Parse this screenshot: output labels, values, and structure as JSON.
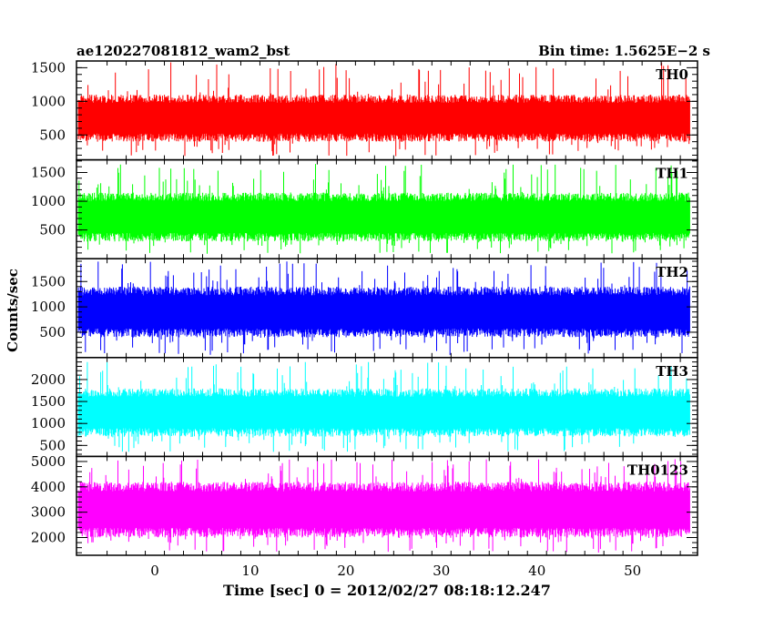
{
  "chart_data": {
    "type": "line",
    "title_left": "ae120227081812_wam2_bst",
    "title_right": "Bin time: 1.5625E−2 s",
    "xlabel": "Time [sec] 0 = 2012/02/27 08:18:12.247",
    "ylabel": "Counts/sec",
    "xlim": [
      -8.2,
      56.8
    ],
    "data_xrange": [
      -8,
      56
    ],
    "xticks": [
      0,
      10,
      20,
      30,
      40,
      50
    ],
    "x_tick_labels": [
      "0",
      "10",
      "20",
      "30",
      "40",
      "50"
    ],
    "grid": false,
    "panels": [
      {
        "name": "TH0",
        "color": "#ff0000",
        "ylim": [
          130,
          1600
        ],
        "yticks": [
          500,
          1000,
          1500
        ],
        "y_tick_labels": [
          "500",
          "1000",
          "1500"
        ],
        "typical_low": 400,
        "typical_high": 1100,
        "min": 180,
        "max": 1600
      },
      {
        "name": "TH1",
        "color": "#00ff00",
        "ylim": [
          0,
          1720
        ],
        "yticks": [
          500,
          1000,
          1500
        ],
        "y_tick_labels": [
          "500",
          "1000",
          "1500"
        ],
        "typical_low": 300,
        "typical_high": 1150,
        "min": 80,
        "max": 1650
      },
      {
        "name": "TH2",
        "color": "#0000ff",
        "ylim": [
          0,
          1950
        ],
        "yticks": [
          500,
          1000,
          1500
        ],
        "y_tick_labels": [
          "500",
          "1000",
          "1500"
        ],
        "typical_low": 400,
        "typical_high": 1400,
        "min": 50,
        "max": 1900
      },
      {
        "name": "TH3",
        "color": "#00ffff",
        "ylim": [
          250,
          2500
        ],
        "yticks": [
          500,
          1000,
          1500,
          2000
        ],
        "y_tick_labels": [
          "500",
          "1000",
          "1500",
          "2000"
        ],
        "typical_low": 700,
        "typical_high": 1800,
        "min": 350,
        "max": 2400
      },
      {
        "name": "TH0123",
        "color": "#ff00ff",
        "ylim": [
          1300,
          5200
        ],
        "yticks": [
          2000,
          3000,
          4000,
          5000
        ],
        "y_tick_labels": [
          "2000",
          "3000",
          "4000",
          "5000"
        ],
        "typical_low": 2000,
        "typical_high": 4200,
        "min": 1400,
        "max": 5100
      }
    ]
  }
}
